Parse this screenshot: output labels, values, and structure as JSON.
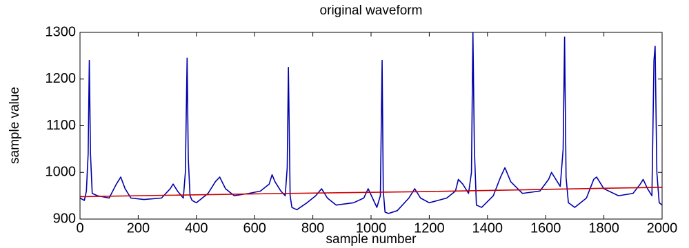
{
  "chart_data": {
    "type": "line",
    "title": "original waveform",
    "xlabel": "sample number",
    "ylabel": "sample value",
    "xlim": [
      0,
      2000
    ],
    "xticks": [
      0,
      200,
      400,
      600,
      800,
      1000,
      1200,
      1400,
      1600,
      1800,
      2000
    ],
    "ylim": [
      900,
      1300
    ],
    "yticks": [
      900,
      1000,
      1100,
      1200,
      1300
    ],
    "grid": false,
    "series": [
      {
        "color": "#0000aa",
        "x": [
          0,
          15,
          22,
          28,
          32,
          36,
          42,
          60,
          100,
          125,
          140,
          155,
          175,
          220,
          280,
          310,
          320,
          335,
          355,
          362,
          368,
          372,
          378,
          385,
          400,
          440,
          465,
          480,
          500,
          530,
          580,
          620,
          650,
          660,
          670,
          690,
          705,
          712,
          716,
          722,
          728,
          745,
          780,
          810,
          830,
          850,
          880,
          940,
          975,
          990,
          1005,
          1020,
          1032,
          1038,
          1042,
          1048,
          1060,
          1090,
          1130,
          1150,
          1170,
          1200,
          1260,
          1290,
          1300,
          1315,
          1335,
          1345,
          1350,
          1355,
          1362,
          1380,
          1420,
          1445,
          1460,
          1480,
          1520,
          1580,
          1610,
          1620,
          1635,
          1650,
          1660,
          1665,
          1670,
          1678,
          1700,
          1740,
          1765,
          1775,
          1800,
          1850,
          1900,
          1925,
          1935,
          1950,
          1965,
          1972,
          1976,
          1982,
          1990,
          2000
        ],
        "values": [
          945,
          940,
          960,
          1040,
          1240,
          1040,
          955,
          950,
          945,
          975,
          990,
          965,
          945,
          942,
          945,
          965,
          975,
          960,
          945,
          1000,
          1245,
          1030,
          950,
          940,
          935,
          955,
          980,
          990,
          965,
          950,
          955,
          960,
          975,
          995,
          980,
          960,
          950,
          1010,
          1225,
          950,
          925,
          920,
          935,
          950,
          965,
          945,
          930,
          935,
          945,
          965,
          945,
          925,
          950,
          1240,
          960,
          915,
          912,
          918,
          945,
          965,
          945,
          935,
          945,
          960,
          985,
          975,
          955,
          1000,
          1300,
          1050,
          930,
          925,
          950,
          990,
          1010,
          980,
          955,
          960,
          985,
          1000,
          985,
          970,
          1050,
          1290,
          990,
          935,
          925,
          945,
          985,
          990,
          965,
          950,
          955,
          975,
          985,
          965,
          950,
          1240,
          1270,
          1000,
          935,
          930
        ]
      },
      {
        "color": "#cc0000",
        "x": [
          0,
          600,
          1200,
          1800,
          2000
        ],
        "values": [
          948,
          954,
          959,
          966,
          968
        ]
      }
    ]
  }
}
